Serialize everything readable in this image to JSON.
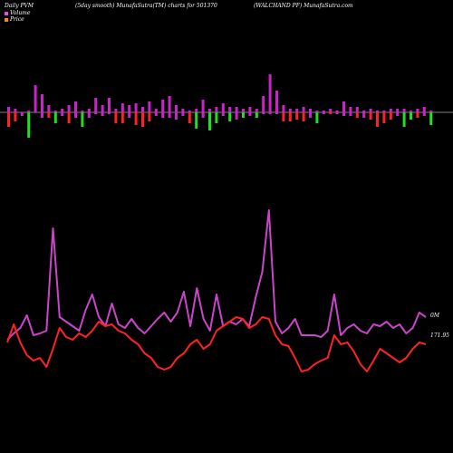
{
  "header": {
    "left": "Daily PVM",
    "middle": "(5day smooth) MunafaSutra(TM) charts for 501370",
    "right": "(WALCHAND PF) MunafaSutra.com"
  },
  "legend": {
    "volume": {
      "label": "Volume",
      "color": "#ee44ee"
    },
    "price": {
      "label": "Price",
      "color": "#ff8800"
    }
  },
  "labels": {
    "volume_last": "0M",
    "price_last": "171.95"
  },
  "colors": {
    "up_bar": "#cc22cc",
    "down_bar": "#ff2222",
    "green_bar": "#22dd22",
    "volume_line": "#cc44cc",
    "price_line": "#ff2222",
    "axis_line": "#ffffff"
  },
  "chart_data": [
    {
      "type": "bar",
      "name": "PVM bars",
      "note_colors": "m = magenta (up), r = red (down), g = green",
      "values": [
        {
          "up": 6,
          "down": -16,
          "c": "r"
        },
        {
          "up": 4,
          "down": -10,
          "c": "r"
        },
        {
          "up": 0,
          "down": -4,
          "c": "m"
        },
        {
          "up": 2,
          "down": -28,
          "c": "g"
        },
        {
          "up": 30,
          "down": 0,
          "c": "m"
        },
        {
          "up": 20,
          "down": -6,
          "c": "m"
        },
        {
          "up": 8,
          "down": -6,
          "c": "r"
        },
        {
          "up": 2,
          "down": -12,
          "c": "g"
        },
        {
          "up": 4,
          "down": -4,
          "c": "m"
        },
        {
          "up": 8,
          "down": -12,
          "c": "r"
        },
        {
          "up": 12,
          "down": -6,
          "c": "m"
        },
        {
          "up": 2,
          "down": -16,
          "c": "g"
        },
        {
          "up": 4,
          "down": -6,
          "c": "m"
        },
        {
          "up": 16,
          "down": -2,
          "c": "m"
        },
        {
          "up": 8,
          "down": -4,
          "c": "m"
        },
        {
          "up": 16,
          "down": -2,
          "c": "m"
        },
        {
          "up": 4,
          "down": -12,
          "c": "r"
        },
        {
          "up": 10,
          "down": -12,
          "c": "r"
        },
        {
          "up": 8,
          "down": -6,
          "c": "m"
        },
        {
          "up": 10,
          "down": -14,
          "c": "r"
        },
        {
          "up": 6,
          "down": -16,
          "c": "r"
        },
        {
          "up": 12,
          "down": -10,
          "c": "r"
        },
        {
          "up": 4,
          "down": -4,
          "c": "m"
        },
        {
          "up": 14,
          "down": -6,
          "c": "m"
        },
        {
          "up": 18,
          "down": -6,
          "c": "m"
        },
        {
          "up": 8,
          "down": -8,
          "c": "m"
        },
        {
          "up": 4,
          "down": -4,
          "c": "m"
        },
        {
          "up": 2,
          "down": -12,
          "c": "r"
        },
        {
          "up": 4,
          "down": -18,
          "c": "g"
        },
        {
          "up": 14,
          "down": -6,
          "c": "m"
        },
        {
          "up": 4,
          "down": -20,
          "c": "g"
        },
        {
          "up": 6,
          "down": -12,
          "c": "g"
        },
        {
          "up": 10,
          "down": -4,
          "c": "m"
        },
        {
          "up": 6,
          "down": -10,
          "c": "g"
        },
        {
          "up": 6,
          "down": -8,
          "c": "m"
        },
        {
          "up": 4,
          "down": -6,
          "c": "g"
        },
        {
          "up": 6,
          "down": -4,
          "c": "m"
        },
        {
          "up": 4,
          "down": -6,
          "c": "g"
        },
        {
          "up": 18,
          "down": -2,
          "c": "m"
        },
        {
          "up": 42,
          "down": -2,
          "c": "m"
        },
        {
          "up": 24,
          "down": -2,
          "c": "m"
        },
        {
          "up": 8,
          "down": -10,
          "c": "r"
        },
        {
          "up": 4,
          "down": -10,
          "c": "r"
        },
        {
          "up": 4,
          "down": -8,
          "c": "r"
        },
        {
          "up": 6,
          "down": -10,
          "c": "r"
        },
        {
          "up": 4,
          "down": -6,
          "c": "m"
        },
        {
          "up": 2,
          "down": -12,
          "c": "g"
        },
        {
          "up": 2,
          "down": -2,
          "c": "m"
        },
        {
          "up": 4,
          "down": -2,
          "c": "r"
        },
        {
          "up": 2,
          "down": -2,
          "c": "m"
        },
        {
          "up": 12,
          "down": -4,
          "c": "m"
        },
        {
          "up": 6,
          "down": -4,
          "c": "m"
        },
        {
          "up": 6,
          "down": -6,
          "c": "r"
        },
        {
          "up": 2,
          "down": -6,
          "c": "m"
        },
        {
          "up": 4,
          "down": -8,
          "c": "r"
        },
        {
          "up": 2,
          "down": -16,
          "c": "r"
        },
        {
          "up": 2,
          "down": -12,
          "c": "r"
        },
        {
          "up": 4,
          "down": -8,
          "c": "r"
        },
        {
          "up": 4,
          "down": -4,
          "c": "m"
        },
        {
          "up": 4,
          "down": -16,
          "c": "g"
        },
        {
          "up": 2,
          "down": -8,
          "c": "g"
        },
        {
          "up": 4,
          "down": -6,
          "c": "r"
        },
        {
          "up": 6,
          "down": -4,
          "c": "m"
        },
        {
          "up": 2,
          "down": -14,
          "c": "g"
        }
      ]
    },
    {
      "type": "line",
      "name": "Volume",
      "y": [
        375,
        368,
        362,
        348,
        370,
        368,
        365,
        252,
        350,
        355,
        360,
        365,
        342,
        325,
        350,
        360,
        335,
        358,
        362,
        352,
        362,
        368,
        360,
        352,
        345,
        355,
        345,
        322,
        360,
        318,
        352,
        365,
        325,
        360,
        355,
        358,
        352,
        360,
        328,
        300,
        232,
        355,
        368,
        362,
        352,
        370,
        370,
        370,
        372,
        365,
        325,
        370,
        362,
        358,
        365,
        368,
        358,
        360,
        355,
        362,
        358,
        368,
        362,
        345,
        350
      ]
    },
    {
      "type": "line",
      "name": "Price",
      "y": [
        378,
        358,
        378,
        392,
        398,
        395,
        405,
        385,
        362,
        372,
        375,
        368,
        372,
        365,
        355,
        360,
        358,
        365,
        368,
        375,
        380,
        390,
        395,
        405,
        408,
        405,
        395,
        390,
        380,
        375,
        385,
        380,
        365,
        360,
        355,
        350,
        352,
        362,
        358,
        350,
        352,
        370,
        380,
        382,
        395,
        410,
        408,
        402,
        398,
        395,
        370,
        380,
        378,
        388,
        402,
        410,
        398,
        385,
        390,
        395,
        400,
        395,
        385,
        378,
        380
      ]
    }
  ]
}
